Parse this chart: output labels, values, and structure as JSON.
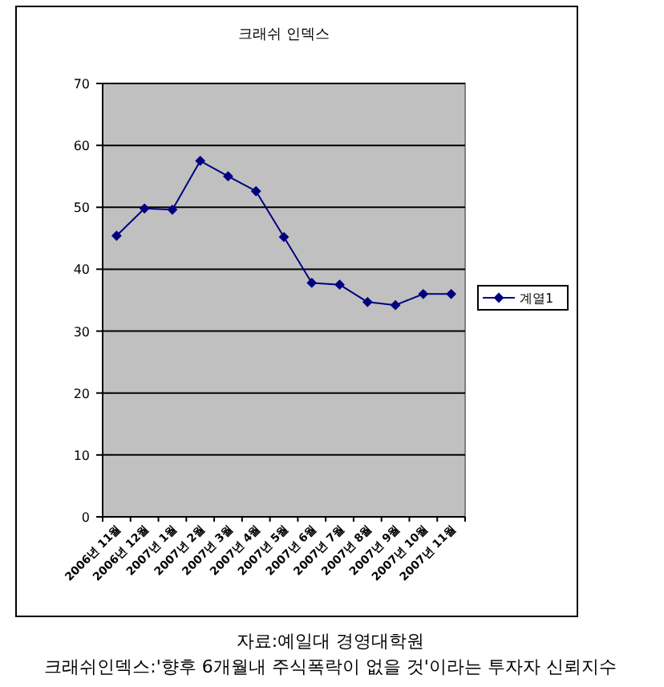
{
  "chart_data": {
    "type": "line",
    "title": "크래쉬 인덱스",
    "categories": [
      "2006년 11월",
      "2006년 12월",
      "2007년 1월",
      "2007년 2월",
      "2007년 3월",
      "2007년 4월",
      "2007년 5월",
      "2007년 6월",
      "2007년 7월",
      "2007년 8월",
      "2007년 9월",
      "2007년 10월",
      "2007년 11월"
    ],
    "series": [
      {
        "name": "계열1",
        "color": "#000080",
        "values": [
          45.4,
          49.8,
          49.6,
          57.5,
          55.0,
          52.6,
          45.2,
          37.8,
          37.5,
          34.7,
          34.2,
          36.0,
          36.0
        ]
      }
    ],
    "ylim": [
      0,
      70
    ],
    "yticks": [
      0,
      10,
      20,
      30,
      40,
      50,
      60,
      70
    ],
    "grid": "y",
    "legend": "right",
    "marker": "diamond",
    "line_style": "solid",
    "annotations": [
      "자료:예일대 경영대학원",
      "크래쉬인덱스:'향후 6개월내 주식폭락이 없을 것'이라는 투자자 신뢰지수"
    ]
  }
}
